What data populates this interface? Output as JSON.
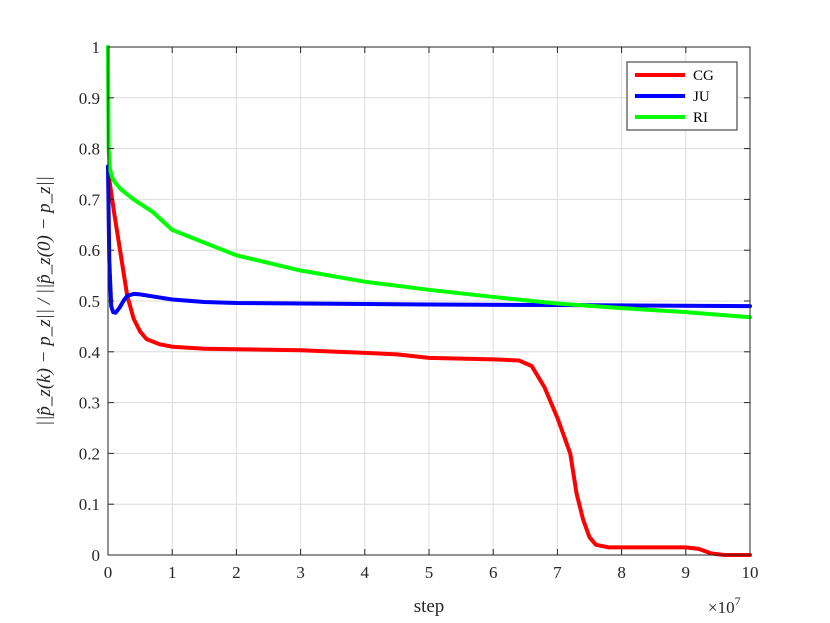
{
  "chart_data": {
    "type": "line",
    "xlabel": "step",
    "ylabel": "||p̂_z(k) − p_z|| / ||p̂_z(0) − p_z||",
    "x_exponent_label": "×10",
    "x_exponent_power": "7",
    "xlim": [
      0,
      10
    ],
    "ylim": [
      0,
      1
    ],
    "xticks": [
      "0",
      "1",
      "2",
      "3",
      "4",
      "5",
      "6",
      "7",
      "8",
      "9",
      "10"
    ],
    "yticks": [
      "0",
      "0.1",
      "0.2",
      "0.3",
      "0.4",
      "0.5",
      "0.6",
      "0.7",
      "0.8",
      "0.9",
      "1"
    ],
    "grid": true,
    "legend_position": "top-right",
    "series": [
      {
        "name": "CG",
        "color": "#ff0000",
        "x": [
          0,
          0.03,
          0.1,
          0.2,
          0.3,
          0.4,
          0.5,
          0.6,
          0.8,
          1.0,
          1.5,
          2.0,
          3.0,
          4.0,
          4.5,
          5.0,
          6.0,
          6.4,
          6.6,
          6.8,
          7.0,
          7.2,
          7.3,
          7.4,
          7.5,
          7.6,
          7.8,
          8.0,
          8.5,
          9.0,
          9.2,
          9.4,
          9.6,
          10.0
        ],
        "y": [
          0.76,
          0.73,
          0.67,
          0.59,
          0.51,
          0.465,
          0.44,
          0.425,
          0.415,
          0.41,
          0.406,
          0.405,
          0.403,
          0.398,
          0.395,
          0.388,
          0.385,
          0.383,
          0.372,
          0.33,
          0.27,
          0.2,
          0.12,
          0.07,
          0.035,
          0.02,
          0.015,
          0.015,
          0.015,
          0.015,
          0.012,
          0.003,
          0.0,
          0.0
        ]
      },
      {
        "name": "JU",
        "color": "#0000ff",
        "x": [
          0,
          0.02,
          0.05,
          0.08,
          0.12,
          0.18,
          0.25,
          0.3,
          0.4,
          0.5,
          0.7,
          1.0,
          1.5,
          2.0,
          3.0,
          5.0,
          7.0,
          10.0
        ],
        "y": [
          0.765,
          0.58,
          0.49,
          0.478,
          0.477,
          0.487,
          0.502,
          0.51,
          0.514,
          0.513,
          0.509,
          0.503,
          0.498,
          0.496,
          0.495,
          0.493,
          0.492,
          0.49
        ]
      },
      {
        "name": "RI",
        "color": "#00ff00",
        "x": [
          0,
          0.01,
          0.03,
          0.06,
          0.1,
          0.2,
          0.4,
          0.7,
          1.0,
          1.5,
          2.0,
          3.0,
          4.0,
          5.0,
          6.0,
          7.0,
          8.0,
          9.0,
          10.0
        ],
        "y": [
          1.0,
          0.8,
          0.76,
          0.745,
          0.735,
          0.72,
          0.7,
          0.675,
          0.64,
          0.615,
          0.59,
          0.56,
          0.538,
          0.522,
          0.508,
          0.495,
          0.486,
          0.478,
          0.468
        ]
      }
    ]
  }
}
